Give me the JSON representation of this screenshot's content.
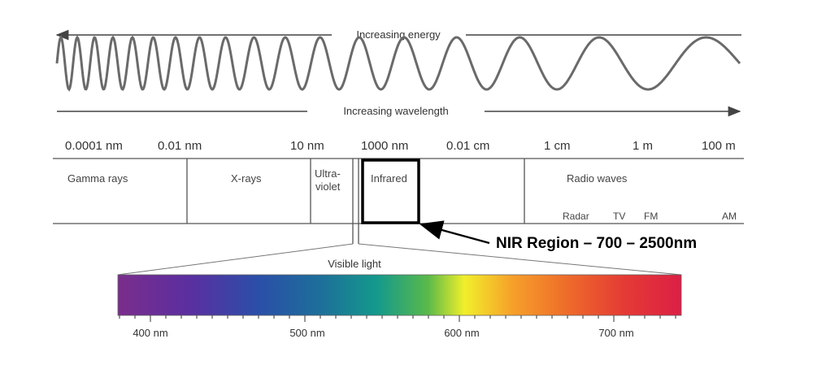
{
  "energy_label": "Increasing energy",
  "wavelength_label": "Increasing wavelength",
  "scale_labels": [
    "0.0001 nm",
    "0.01 nm",
    "10 nm",
    "1000 nm",
    "0.01 cm",
    "1 cm",
    "1 m",
    "100 m"
  ],
  "bands": {
    "gamma": "Gamma rays",
    "xrays": "X-rays",
    "uv_line1": "Ultra-",
    "uv_line2": "violet",
    "infrared": "Infrared",
    "radio": "Radio waves"
  },
  "radio_sub": [
    "Radar",
    "TV",
    "FM",
    "AM"
  ],
  "nir_callout": "NIR Region – 700 – 2500nm",
  "visible_label": "Visible light",
  "visible_ticks": [
    "400 nm",
    "500 nm",
    "600 nm",
    "700 nm"
  ],
  "colors": {
    "wave": "#6a6a6a",
    "line": "#555555",
    "box": "#000000"
  }
}
